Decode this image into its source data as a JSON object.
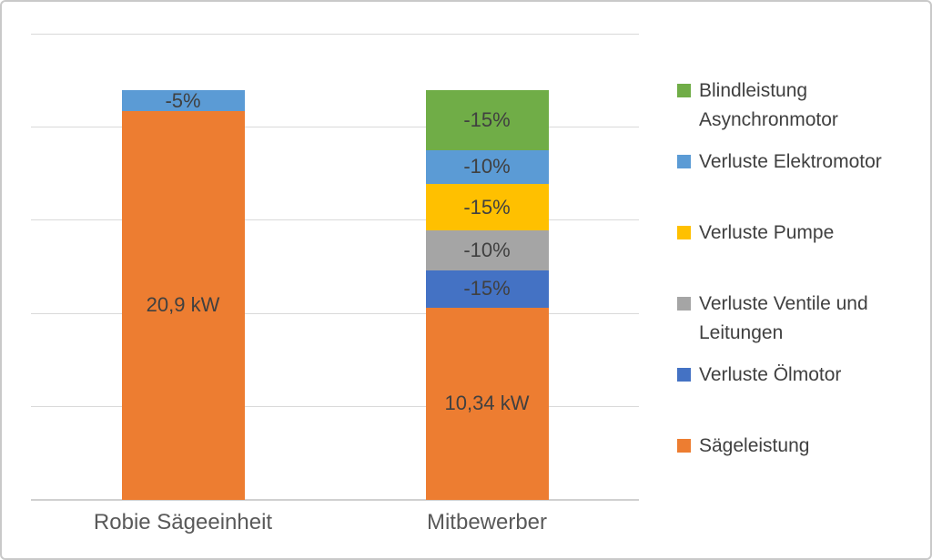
{
  "chart_data": {
    "type": "bar",
    "stacked": true,
    "title": "",
    "xlabel": "",
    "ylabel": "",
    "unit": "kW",
    "ylim": [
      0,
      25
    ],
    "gridline_step": 5,
    "grid": true,
    "y_axis_labels_visible": false,
    "legend_position": "right",
    "categories": [
      "Robie Sägeeinheit",
      "Mitbewerber"
    ],
    "bars": [
      {
        "category": "Robie Sägeeinheit",
        "segments_bottom_to_top": [
          {
            "name": "Sägeleistung",
            "value": 20.9,
            "label": "20,9 kW",
            "color": "#ED7D31"
          },
          {
            "name": "Verluste Elektromotor",
            "value": 1.1,
            "label": "-5%",
            "color": "#5B9BD5"
          }
        ]
      },
      {
        "category": "Mitbewerber",
        "segments_bottom_to_top": [
          {
            "name": "Sägeleistung",
            "value": 10.34,
            "label": "10,34 kW",
            "color": "#ED7D31"
          },
          {
            "name": "Verluste Ölmotor",
            "value": 2.0,
            "label": "-15%",
            "color": "#4472C4"
          },
          {
            "name": "Verluste Ventile und Leitungen",
            "value": 2.16,
            "label": "-10%",
            "color": "#A5A5A5"
          },
          {
            "name": "Verluste Pumpe",
            "value": 2.46,
            "label": "-15%",
            "color": "#FFC000"
          },
          {
            "name": "Verluste Elektromotor",
            "value": 1.85,
            "label": "-10%",
            "color": "#5B9BD5"
          },
          {
            "name": "Blindleistung Asynchronmotor",
            "value": 3.19,
            "label": "-15%",
            "color": "#70AD47"
          }
        ]
      }
    ],
    "legend": [
      {
        "label": "Blindleistung Asynchronmotor",
        "color": "#70AD47"
      },
      {
        "label": "Verluste Elektromotor",
        "color": "#5B9BD5"
      },
      {
        "label": "Verluste Pumpe",
        "color": "#FFC000"
      },
      {
        "label": "Verluste Ventile und Leitungen",
        "color": "#A5A5A5"
      },
      {
        "label": "Verluste Ölmotor",
        "color": "#4472C4"
      },
      {
        "label": "Sägeleistung",
        "color": "#ED7D31"
      }
    ]
  },
  "colors": {
    "orange": "#ED7D31",
    "light_blue": "#5B9BD5",
    "green": "#70AD47",
    "yellow": "#FFC000",
    "gray": "#A5A5A5",
    "dark_blue": "#4472C4",
    "gridline": "#d9d9d9",
    "axis_line": "#d0d0d0",
    "data_label_text": "#404040",
    "category_text": "#595959",
    "frame_border": "#c9c9c9"
  }
}
